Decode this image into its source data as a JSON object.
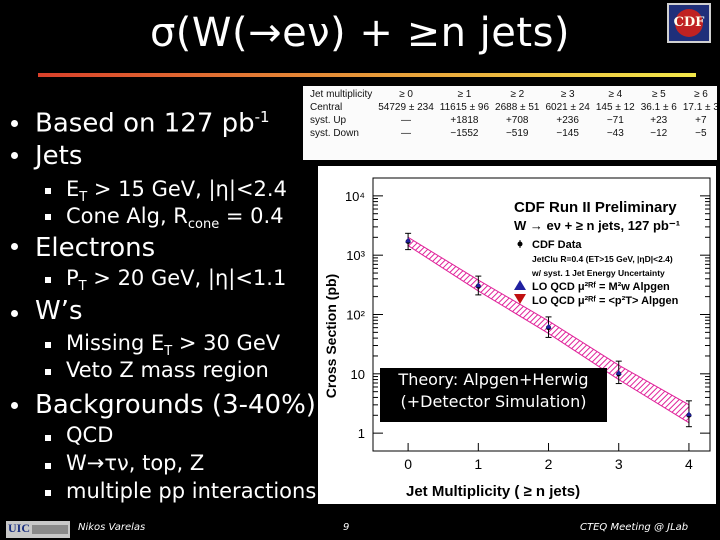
{
  "slide": {
    "title": "σ(W(→eν) + ≥n jets)",
    "logo_text": "CDF"
  },
  "bullets": [
    {
      "text": "Based on 127 pb",
      "sup": "-1"
    },
    {
      "text": "Jets"
    },
    {
      "text": "Electrons"
    },
    {
      "text": "W’s"
    },
    {
      "text": "Backgrounds (3-40%)"
    }
  ],
  "subbullets": {
    "jets_1": {
      "pre": "E",
      "sub": "T",
      "post": " > 15 GeV, |η|<2.4"
    },
    "jets_2": {
      "pre": "Cone Alg, R",
      "sub": "cone",
      "post": " = 0.4"
    },
    "electrons_1": {
      "pre": "P",
      "sub": "T",
      "post": " > 20 GeV, |η|<1.1"
    },
    "ws_1": {
      "pre": "Missing E",
      "sub": "T",
      "post": " > 30 GeV"
    },
    "ws_2": {
      "text": "Veto Z mass region"
    },
    "bg_1": {
      "text": "QCD"
    },
    "bg_2": {
      "text": "W→τν, top, Z"
    },
    "bg_3": {
      "text": "multiple pp interactions"
    }
  },
  "table": {
    "headers": [
      "Jet multiplicity",
      "≥ 0",
      "≥ 1",
      "≥ 2",
      "≥ 3",
      "≥ 4",
      "≥ 5",
      "≥ 6"
    ],
    "rows": [
      [
        "Central",
        "54729 ± 234",
        "11615 ± 96",
        "2688 ± 51",
        "6021 ± 24",
        "145 ± 12",
        "36.1 ± 6",
        "17.1 ± 3"
      ],
      [
        "syst. Up",
        "—",
        "+1818",
        "+708",
        "+236",
        "−71",
        "+23",
        "+7"
      ],
      [
        "syst. Down",
        "—",
        "−1552",
        "−519",
        "−145",
        "−43",
        "−12",
        "−5"
      ]
    ]
  },
  "chart_data": {
    "type": "scatter",
    "title": "CDF Run II Preliminary",
    "subtitle": "W → eν + ≥ n jets, 127 pb⁻¹",
    "legend": [
      {
        "label": "CDF Data",
        "marker": "point"
      },
      {
        "label": "JetClu R=0.4 (ET>15 GeV, |ηD|<2.4)",
        "marker": "none"
      },
      {
        "label": "w/ syst. 1 Jet Energy Uncertainty",
        "marker": "none"
      },
      {
        "label": "LO QCD  μ²ᴿᶠ = M²w   Alpgen",
        "marker": "triangle-up",
        "color": "#2020a0"
      },
      {
        "label": "LO QCD  μ²ᴿᶠ = <p²T>  Alpgen",
        "marker": "triangle-down",
        "color": "#c01010"
      }
    ],
    "xlabel": "Jet Multiplicity ( ≥ n jets)",
    "ylabel": "Cross Section (pb)",
    "x_ticks": [
      "0",
      "1",
      "2",
      "3",
      "4"
    ],
    "y_ticks": [
      "1",
      "10",
      "10²",
      "10³",
      "10⁴"
    ],
    "xlim": [
      -0.5,
      4.3
    ],
    "ylim": [
      0.5,
      20000
    ],
    "yscale": "log",
    "data": {
      "x": [
        0,
        1,
        2,
        3,
        4
      ],
      "y": [
        1700,
        300,
        60,
        10,
        2.0
      ]
    },
    "band_upper": [
      2000,
      380,
      78,
      14,
      3.0
    ],
    "band_lower": [
      1450,
      250,
      48,
      8,
      1.5
    ],
    "band_color": "#e0229a"
  },
  "theory_note": {
    "line1": "Theory: Alpgen+Herwig",
    "line2": "(+Detector Simulation)"
  },
  "footer": {
    "author": "Nikos Varelas",
    "page": "9",
    "event": "CTEQ Meeting @ JLab"
  }
}
